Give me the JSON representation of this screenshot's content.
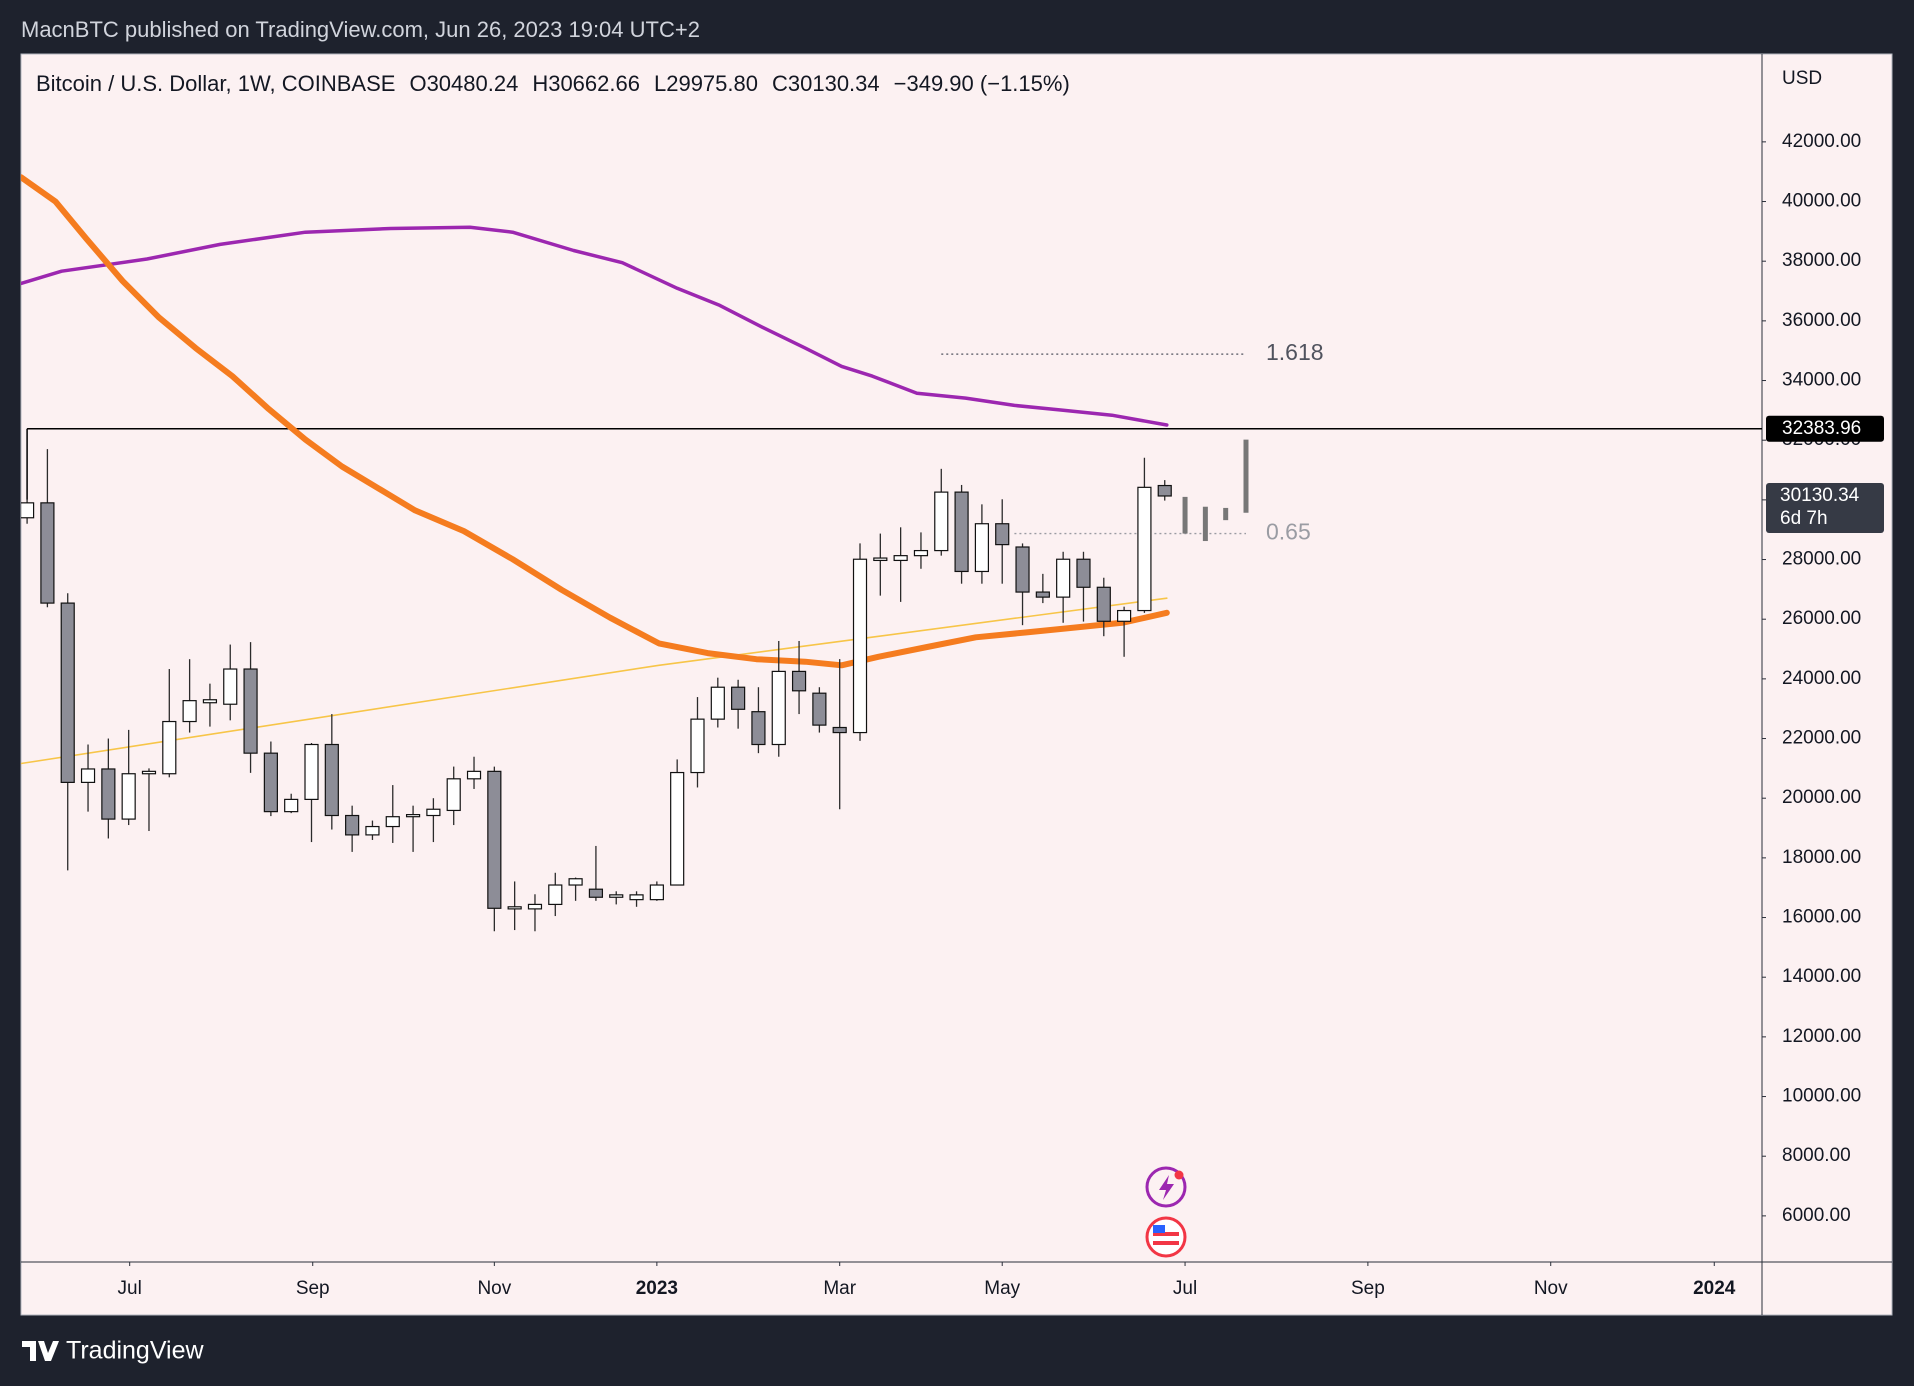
{
  "header": {
    "publisher": "MacnBTC published on TradingView.com, Jun 26, 2023 19:04 UTC+2",
    "brand": "TradingView"
  },
  "chart_data": {
    "type": "candlestick",
    "title": "Bitcoin / U.S. Dollar, 1W, COINBASE",
    "ohlc_labels": [
      "O30480.24",
      "H30662.66",
      "L29975.80",
      "C30130.34"
    ],
    "change_label": "−349.90 (−1.15%)",
    "y_axis_label": "USD",
    "x": [
      0,
      1,
      2,
      3,
      4,
      5,
      6,
      7,
      8,
      9,
      10,
      11,
      12,
      13,
      14,
      15,
      16,
      17,
      18,
      19,
      20,
      21,
      22,
      23,
      24,
      25,
      26,
      27,
      28,
      29,
      30,
      31,
      32,
      33,
      34,
      35,
      36,
      37,
      38,
      39,
      40,
      41,
      42,
      43,
      44,
      45,
      46,
      47,
      48,
      49,
      50,
      51,
      52,
      53,
      54,
      55,
      56
    ],
    "open": [
      29400,
      29900,
      26540,
      20530,
      20980,
      19300,
      20820,
      20820,
      22570,
      23200,
      23150,
      24330,
      21510,
      19550,
      19960,
      21800,
      19420,
      18770,
      19050,
      19380,
      19420,
      19590,
      20650,
      20900,
      16290,
      16290,
      16440,
      17090,
      16950,
      16680,
      16600,
      16600,
      17090,
      20860,
      22650,
      23720,
      22900,
      21800,
      24250,
      23520,
      22370,
      22200,
      27970,
      27970,
      28130,
      28300,
      30260,
      27600,
      29200,
      28420,
      26910,
      26740,
      28010,
      27070,
      25930,
      26290,
      30480.24
    ],
    "high": [
      30000,
      31700,
      26870,
      21800,
      22000,
      22290,
      21000,
      24330,
      24660,
      23840,
      25150,
      25230,
      21900,
      20150,
      21850,
      22820,
      19750,
      19250,
      20440,
      19750,
      20000,
      21060,
      21390,
      21060,
      17210,
      16780,
      17500,
      17340,
      18400,
      16880,
      16880,
      17210,
      21300,
      23390,
      24040,
      23970,
      23720,
      25270,
      25270,
      23720,
      24660,
      28540,
      28870,
      29080,
      28910,
      31040,
      30500,
      29850,
      30020,
      28540,
      27520,
      28260,
      28260,
      27390,
      26420,
      31410,
      30662.66
    ],
    "low": [
      29200,
      26400,
      17580,
      19550,
      18650,
      19100,
      18900,
      20700,
      22200,
      22400,
      22610,
      20850,
      19400,
      19500,
      18530,
      18950,
      18200,
      18600,
      18500,
      18200,
      18530,
      19100,
      20310,
      15540,
      15580,
      15540,
      16050,
      16560,
      16560,
      16440,
      16360,
      16560,
      17090,
      20360,
      22370,
      22330,
      21510,
      21390,
      22820,
      22200,
      19630,
      21920,
      26790,
      26580,
      27690,
      28130,
      27190,
      27190,
      27190,
      25800,
      26540,
      25880,
      25920,
      25430,
      24740,
      26210,
      29975.8
    ],
    "close": [
      29900,
      26540,
      20530,
      20980,
      19300,
      20820,
      20900,
      22570,
      23270,
      23300,
      24330,
      21510,
      19550,
      19960,
      21800,
      19420,
      18770,
      19050,
      19380,
      19450,
      19630,
      20650,
      20900,
      16310,
      16360,
      16440,
      17090,
      17300,
      16680,
      16760,
      16760,
      17090,
      20860,
      22650,
      23720,
      22980,
      21800,
      24250,
      23600,
      22450,
      22200,
      28010,
      28050,
      28130,
      28300,
      30260,
      27600,
      29200,
      28500,
      26910,
      26740,
      28010,
      27070,
      25930,
      26290,
      30420,
      30130.34
    ],
    "colors": {
      "up": "#ffffff",
      "down": "#8d8d97",
      "wick": "#2b2b2b"
    },
    "lines": [
      {
        "color": "#f7c548",
        "width": 1.6,
        "x": [
          -0.3,
          31.1,
          56.1
        ],
        "values": [
          21163,
          24454,
          26703
        ]
      },
      {
        "color": "#9c27b0",
        "width": 3.5,
        "x": [
          -0.3,
          1.7,
          5.9,
          9.5,
          13.7,
          17.9,
          21.8,
          23.9,
          26.9,
          29.3,
          32.0,
          34.1,
          36.2,
          38.3,
          40.1,
          41.6,
          43.8,
          46.2,
          48.6,
          51.0,
          53.4,
          56.1
        ],
        "values": [
          37256,
          37665,
          38074,
          38564,
          38973,
          39096,
          39137,
          38973,
          38360,
          37951,
          37092,
          36519,
          35783,
          35088,
          34474,
          34147,
          33575,
          33411,
          33166,
          33002,
          32838,
          32511
        ]
      },
      {
        "color": "#f57c1f",
        "width": 6,
        "x": [
          -0.3,
          1.4,
          2.9,
          4.7,
          6.5,
          8.3,
          10.1,
          11.9,
          13.7,
          15.5,
          17.3,
          19.1,
          21.5,
          23.9,
          26.3,
          28.7,
          31.1,
          33.5,
          35.9,
          38.3,
          40.1,
          41.9,
          44.3,
          46.7,
          49.2,
          51.6,
          53.96,
          56.1
        ],
        "values": [
          40814,
          39996,
          38769,
          37337,
          36110,
          35088,
          34147,
          33043,
          32020,
          31120,
          30384,
          29648,
          28953,
          28012,
          26990,
          26049,
          25190,
          24863,
          24658,
          24577,
          24454,
          24740,
          25067,
          25395,
          25558,
          25722,
          25885,
          26213
        ]
      }
    ],
    "projection": {
      "color": "#777777",
      "x": [
        57,
        58,
        59,
        60
      ],
      "high": [
        30100,
        29770,
        29730,
        32020
      ],
      "low": [
        28870,
        28620,
        29320,
        29570
      ]
    },
    "hline": {
      "value": 32383.96,
      "label": "32383.96"
    },
    "fib_levels": [
      {
        "label": "1.618",
        "value": 34884,
        "x": [
          45,
          60
        ],
        "color": "#50535e"
      },
      {
        "label": "0.65",
        "value": 28871,
        "x": [
          48.6,
          60
        ],
        "color": "#9a9ca3"
      }
    ],
    "last_price_label": {
      "label": "30130.34",
      "countdown": "6d 7h"
    },
    "xlim": [
      -0.3,
      85.4
    ],
    "xticks": [
      {
        "value": 5.05,
        "label": "Jul"
      },
      {
        "value": 14.06,
        "label": "Sep"
      },
      {
        "value": 23.0,
        "label": "Nov"
      },
      {
        "value": 31.0,
        "label": "2023"
      },
      {
        "value": 40.0,
        "label": "Mar"
      },
      {
        "value": 48.0,
        "label": "May"
      },
      {
        "value": 57.0,
        "label": "Jul"
      },
      {
        "value": 66.0,
        "label": "Sep"
      },
      {
        "value": 75.0,
        "label": "Nov"
      },
      {
        "value": 83.05,
        "label": "2024"
      }
    ],
    "ylim": [
      4454,
      44945
    ],
    "yticks": [
      {
        "value": 6000,
        "label": "6000.00"
      },
      {
        "value": 8000,
        "label": "8000.00"
      },
      {
        "value": 10000,
        "label": "10000.00"
      },
      {
        "value": 12000,
        "label": "12000.00"
      },
      {
        "value": 14000,
        "label": "14000.00"
      },
      {
        "value": 16000,
        "label": "16000.00"
      },
      {
        "value": 18000,
        "label": "18000.00"
      },
      {
        "value": 20000,
        "label": "20000.00"
      },
      {
        "value": 22000,
        "label": "22000.00"
      },
      {
        "value": 24000,
        "label": "24000.00"
      },
      {
        "value": 26000,
        "label": "26000.00"
      },
      {
        "value": 28000,
        "label": "28000.00"
      },
      {
        "value": 30000,
        "label": "30000.00"
      },
      {
        "value": 32000,
        "label": "32000.00"
      },
      {
        "value": 34000,
        "label": "34000.00"
      },
      {
        "value": 36000,
        "label": "36000.00"
      },
      {
        "value": 38000,
        "label": "38000.00"
      },
      {
        "value": 40000,
        "label": "40000.00"
      },
      {
        "value": 42000,
        "label": "42000.00"
      }
    ]
  }
}
